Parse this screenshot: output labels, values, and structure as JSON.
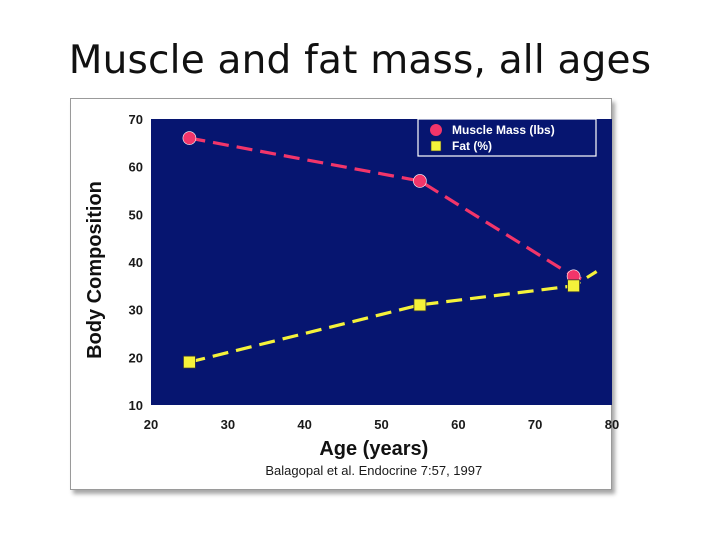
{
  "slide": {
    "title": "Muscle and fat mass, all ages"
  },
  "colors": {
    "plot_bg": "#061570",
    "muscle": "#f2356a",
    "fat": "#f5f23a",
    "legend_border": "#ffffff"
  },
  "chart_data": {
    "type": "line",
    "xlabel": "Age (years)",
    "ylabel": "Body Composition",
    "xlim": [
      20,
      80
    ],
    "ylim": [
      10,
      70
    ],
    "xticks": [
      20,
      30,
      40,
      50,
      60,
      70,
      80
    ],
    "yticks": [
      10,
      20,
      30,
      40,
      50,
      60,
      70
    ],
    "citation": "Balagopal et al. Endocrine 7:57, 1997",
    "legend_position": "top-right",
    "series": [
      {
        "name": "Muscle Mass (lbs)",
        "marker": "circle",
        "line": "dashed",
        "color": "#f2356a",
        "x": [
          25,
          55,
          75
        ],
        "y": [
          66,
          57,
          37
        ],
        "tail": {
          "x": 76,
          "y": 36.5
        }
      },
      {
        "name": "Fat (%)",
        "marker": "square",
        "line": "dashed",
        "color": "#f5f23a",
        "x": [
          25,
          55,
          75
        ],
        "y": [
          19,
          31,
          35
        ],
        "tail": {
          "x": 78,
          "y": 38
        }
      }
    ]
  }
}
